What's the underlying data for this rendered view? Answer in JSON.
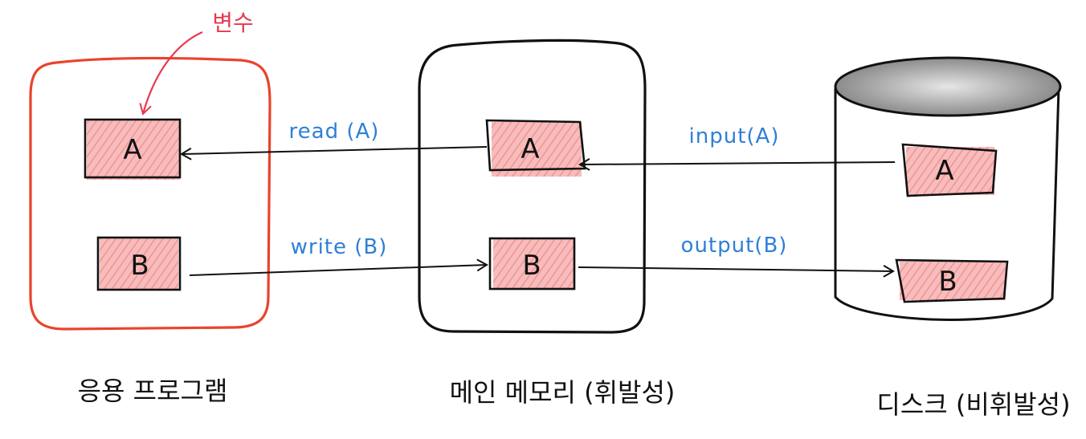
{
  "colors": {
    "app_border": "#e8442c",
    "ink": "#111111",
    "label_blue": "#2f7fd6",
    "note_red": "#e8384f",
    "fill_pink": "#f28b8b",
    "disk_top": "#8f8f8f"
  },
  "annotation": {
    "text": "변수"
  },
  "application": {
    "caption": "응용 프로그램",
    "var_a": "A",
    "var_b": "B"
  },
  "memory": {
    "caption": "메인 메모리 (휘발성)",
    "block_a": "A",
    "block_b": "B"
  },
  "disk": {
    "caption": "디스크 (비휘발성)",
    "block_a": "A",
    "block_b": "B"
  },
  "arrows": {
    "read": "read (A)",
    "write": "write (B)",
    "input": "input(A)",
    "output": "output(B)"
  }
}
